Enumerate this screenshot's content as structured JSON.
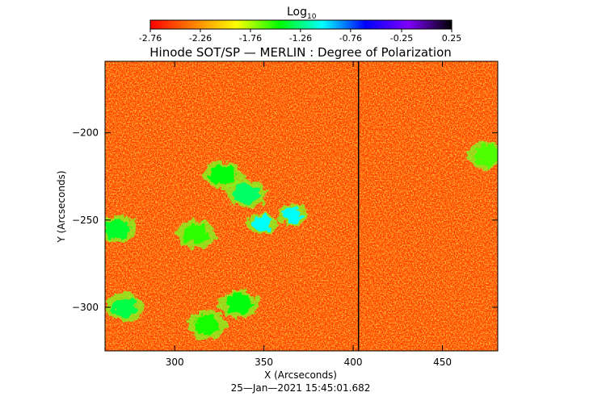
{
  "colorbar": {
    "label": "Log",
    "label_subscript": "10",
    "ticks": [
      "-2.76",
      "-2.26",
      "-1.76",
      "-1.26",
      "-0.76",
      "-0.25",
      "0.25"
    ],
    "range": [
      -2.76,
      0.25
    ],
    "colormap": [
      "#ff0000",
      "#ff8000",
      "#ffff00",
      "#00ff00",
      "#00ffff",
      "#0000ff",
      "#8000ff",
      "#000000"
    ]
  },
  "chart_data": {
    "type": "heatmap",
    "title": "Hinode SOT/SP — MERLIN : Degree of Polarization",
    "xlabel": "X (Arcseconds)",
    "ylabel": "Y (Arcseconds)",
    "xlim": [
      261,
      481
    ],
    "ylim": [
      -325,
      -159
    ],
    "xticks": [
      300,
      350,
      400,
      450
    ],
    "yticks": [
      -200,
      -250,
      -300
    ],
    "x_tick_labels": [
      "300",
      "350",
      "400",
      "450"
    ],
    "y_tick_labels": [
      "−200",
      "−250",
      "−300"
    ],
    "value_range": [
      -2.76,
      0.25
    ],
    "seam_x": 403,
    "patches": [
      {
        "x": 349,
        "y": -252,
        "value": -1.05
      },
      {
        "x": 366,
        "y": -247,
        "value": -1.05
      },
      {
        "x": 340,
        "y": -235,
        "value": -1.3
      },
      {
        "x": 327,
        "y": -224,
        "value": -1.45
      },
      {
        "x": 312,
        "y": -258,
        "value": -1.55
      },
      {
        "x": 268,
        "y": -255,
        "value": -1.4
      },
      {
        "x": 272,
        "y": -300,
        "value": -1.35
      },
      {
        "x": 336,
        "y": -298,
        "value": -1.45
      },
      {
        "x": 318,
        "y": -310,
        "value": -1.5
      },
      {
        "x": 475,
        "y": -213,
        "value": -1.6
      }
    ]
  },
  "footer": {
    "timestamp": "25—Jan—2021 15:45:01.682"
  }
}
